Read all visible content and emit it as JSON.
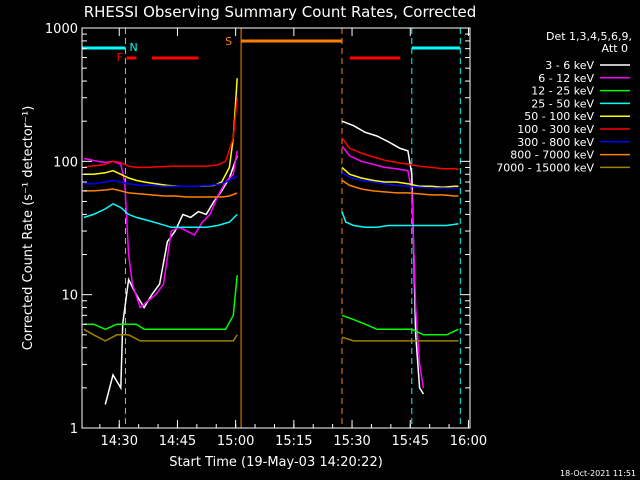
{
  "chart_data": {
    "type": "line",
    "title": "RHESSI Observing Summary Count Rates, Corrected",
    "xlabel": "Start Time (19-May-03 14:20:22)",
    "ylabel": "Corrected Count Rate (s⁻¹ detector⁻¹)",
    "yscale": "log",
    "ylim": [
      1,
      1000
    ],
    "xlim_minutes": [
      0,
      100
    ],
    "x_ticks": [
      {
        "t": 9.6,
        "label": "14:30"
      },
      {
        "t": 24.6,
        "label": "14:45"
      },
      {
        "t": 39.6,
        "label": "15:00"
      },
      {
        "t": 54.6,
        "label": "15:15"
      },
      {
        "t": 69.6,
        "label": "15:30"
      },
      {
        "t": 84.6,
        "label": "15:45"
      },
      {
        "t": 99.6,
        "label": "16:00"
      }
    ],
    "y_ticks": [
      {
        "v": 1,
        "label": "1"
      },
      {
        "v": 10,
        "label": "10"
      },
      {
        "v": 100,
        "label": "100"
      },
      {
        "v": 1000,
        "label": "1000"
      }
    ],
    "legend_header": [
      "Det 1,3,4,5,6,9,",
      "Att 0"
    ],
    "legend_placement": "top-right",
    "footer_date": "18-Oct-2021 11:51",
    "data_gap_minutes": [
      41,
      67
    ],
    "series": [
      {
        "name": "3 - 6 keV",
        "color": "#ffffff",
        "points": [
          [
            6,
            1.5
          ],
          [
            8,
            2.5
          ],
          [
            10,
            2
          ],
          [
            10.5,
            6
          ],
          [
            12,
            13
          ],
          [
            14,
            10
          ],
          [
            16,
            8
          ],
          [
            18,
            10
          ],
          [
            20,
            12
          ],
          [
            22,
            25
          ],
          [
            24,
            30
          ],
          [
            26,
            40
          ],
          [
            28,
            38
          ],
          [
            30,
            42
          ],
          [
            32,
            40
          ],
          [
            34,
            50
          ],
          [
            36,
            60
          ],
          [
            38,
            75
          ],
          [
            40,
            110
          ],
          [
            67,
            200
          ],
          [
            70,
            185
          ],
          [
            73,
            165
          ],
          [
            76,
            155
          ],
          [
            79,
            140
          ],
          [
            82,
            125
          ],
          [
            84,
            120
          ],
          [
            85,
            80
          ],
          [
            86,
            5
          ],
          [
            87,
            2
          ],
          [
            88,
            1.8
          ]
        ]
      },
      {
        "name": "6 - 12 keV",
        "color": "#ff00ff",
        "points": [
          [
            0.5,
            105
          ],
          [
            2,
            103
          ],
          [
            4,
            100
          ],
          [
            6,
            98
          ],
          [
            8,
            100
          ],
          [
            10,
            95
          ],
          [
            11,
            70
          ],
          [
            12,
            20
          ],
          [
            13,
            12
          ],
          [
            15,
            8
          ],
          [
            17,
            9
          ],
          [
            19,
            10
          ],
          [
            21,
            12
          ],
          [
            23,
            30
          ],
          [
            25,
            32
          ],
          [
            27,
            30
          ],
          [
            29,
            28
          ],
          [
            31,
            35
          ],
          [
            33,
            40
          ],
          [
            35,
            55
          ],
          [
            37,
            70
          ],
          [
            39,
            80
          ],
          [
            40,
            120
          ],
          [
            67,
            130
          ],
          [
            69,
            110
          ],
          [
            72,
            100
          ],
          [
            75,
            95
          ],
          [
            78,
            90
          ],
          [
            81,
            88
          ],
          [
            84,
            85
          ],
          [
            85,
            60
          ],
          [
            86,
            8
          ],
          [
            87,
            3
          ],
          [
            88,
            2
          ]
        ]
      },
      {
        "name": "12 - 25 keV",
        "color": "#00ff00",
        "points": [
          [
            0.5,
            6
          ],
          [
            3,
            6
          ],
          [
            6,
            5.5
          ],
          [
            9,
            6
          ],
          [
            12,
            6
          ],
          [
            14,
            6
          ],
          [
            16,
            5.5
          ],
          [
            19,
            5.5
          ],
          [
            22,
            5.5
          ],
          [
            25,
            5.5
          ],
          [
            28,
            5.5
          ],
          [
            31,
            5.5
          ],
          [
            34,
            5.5
          ],
          [
            37,
            5.5
          ],
          [
            39,
            7
          ],
          [
            40,
            14
          ],
          [
            67,
            7
          ],
          [
            70,
            6.5
          ],
          [
            73,
            6
          ],
          [
            76,
            5.5
          ],
          [
            79,
            5.5
          ],
          [
            82,
            5.5
          ],
          [
            85,
            5.5
          ],
          [
            88,
            5
          ],
          [
            91,
            5
          ],
          [
            94,
            5
          ],
          [
            97,
            5.5
          ]
        ]
      },
      {
        "name": "25 - 50 keV",
        "color": "#00ffff",
        "points": [
          [
            0.5,
            38
          ],
          [
            3,
            40
          ],
          [
            6,
            44
          ],
          [
            8,
            48
          ],
          [
            10,
            45
          ],
          [
            12,
            40
          ],
          [
            14,
            38
          ],
          [
            17,
            36
          ],
          [
            20,
            34
          ],
          [
            23,
            32
          ],
          [
            26,
            32
          ],
          [
            29,
            32
          ],
          [
            32,
            32
          ],
          [
            35,
            33
          ],
          [
            38,
            35
          ],
          [
            40,
            40
          ],
          [
            67,
            42
          ],
          [
            68,
            35
          ],
          [
            70,
            33
          ],
          [
            73,
            32
          ],
          [
            76,
            32
          ],
          [
            79,
            33
          ],
          [
            82,
            33
          ],
          [
            85,
            33
          ],
          [
            88,
            33
          ],
          [
            91,
            33
          ],
          [
            94,
            33
          ],
          [
            97,
            34
          ]
        ]
      },
      {
        "name": "50 - 100 keV",
        "color": "#ffff00",
        "points": [
          [
            0.5,
            80
          ],
          [
            3,
            80
          ],
          [
            6,
            82
          ],
          [
            8,
            85
          ],
          [
            10,
            80
          ],
          [
            12,
            75
          ],
          [
            14,
            72
          ],
          [
            16,
            70
          ],
          [
            19,
            68
          ],
          [
            22,
            66
          ],
          [
            25,
            65
          ],
          [
            28,
            65
          ],
          [
            31,
            65
          ],
          [
            34,
            66
          ],
          [
            36,
            70
          ],
          [
            38,
            90
          ],
          [
            39,
            150
          ],
          [
            40,
            420
          ],
          [
            67,
            90
          ],
          [
            69,
            80
          ],
          [
            72,
            75
          ],
          [
            75,
            72
          ],
          [
            78,
            70
          ],
          [
            81,
            70
          ],
          [
            84,
            68
          ],
          [
            87,
            65
          ],
          [
            90,
            65
          ],
          [
            93,
            64
          ],
          [
            96,
            65
          ],
          [
            97,
            65
          ]
        ]
      },
      {
        "name": "100 - 300 keV",
        "color": "#ff0000",
        "points": [
          [
            0.5,
            90
          ],
          [
            2,
            92
          ],
          [
            4,
            93
          ],
          [
            6,
            95
          ],
          [
            8,
            100
          ],
          [
            10,
            98
          ],
          [
            12,
            92
          ],
          [
            14,
            90
          ],
          [
            17,
            90
          ],
          [
            20,
            91
          ],
          [
            23,
            92
          ],
          [
            26,
            92
          ],
          [
            29,
            92
          ],
          [
            32,
            92
          ],
          [
            35,
            94
          ],
          [
            37,
            100
          ],
          [
            39,
            150
          ],
          [
            40,
            300
          ],
          [
            67,
            150
          ],
          [
            69,
            125
          ],
          [
            72,
            115
          ],
          [
            75,
            108
          ],
          [
            78,
            102
          ],
          [
            81,
            98
          ],
          [
            84,
            95
          ],
          [
            87,
            92
          ],
          [
            90,
            90
          ],
          [
            93,
            88
          ],
          [
            96,
            88
          ],
          [
            97,
            87
          ]
        ]
      },
      {
        "name": "300 - 800 keV",
        "color": "#0000ff",
        "points": [
          [
            0.5,
            68
          ],
          [
            3,
            68
          ],
          [
            6,
            70
          ],
          [
            8,
            72
          ],
          [
            10,
            70
          ],
          [
            12,
            68
          ],
          [
            15,
            66
          ],
          [
            18,
            66
          ],
          [
            21,
            65
          ],
          [
            24,
            65
          ],
          [
            27,
            65
          ],
          [
            30,
            65
          ],
          [
            33,
            66
          ],
          [
            36,
            68
          ],
          [
            38,
            72
          ],
          [
            40,
            78
          ],
          [
            67,
            82
          ],
          [
            69,
            76
          ],
          [
            72,
            72
          ],
          [
            75,
            70
          ],
          [
            78,
            68
          ],
          [
            81,
            66
          ],
          [
            84,
            65
          ],
          [
            87,
            64
          ],
          [
            90,
            63
          ],
          [
            93,
            63
          ],
          [
            96,
            63
          ],
          [
            97,
            63
          ]
        ]
      },
      {
        "name": "800 - 7000 keV",
        "color": "#ff8000",
        "points": [
          [
            0.5,
            60
          ],
          [
            3,
            60
          ],
          [
            6,
            61
          ],
          [
            8,
            62
          ],
          [
            10,
            60
          ],
          [
            12,
            58
          ],
          [
            15,
            57
          ],
          [
            18,
            56
          ],
          [
            21,
            55
          ],
          [
            24,
            55
          ],
          [
            27,
            54
          ],
          [
            30,
            54
          ],
          [
            33,
            54
          ],
          [
            36,
            54
          ],
          [
            38,
            55
          ],
          [
            40,
            58
          ],
          [
            67,
            72
          ],
          [
            69,
            66
          ],
          [
            72,
            62
          ],
          [
            75,
            60
          ],
          [
            78,
            59
          ],
          [
            81,
            58
          ],
          [
            84,
            58
          ],
          [
            87,
            57
          ],
          [
            90,
            56
          ],
          [
            93,
            56
          ],
          [
            96,
            55
          ],
          [
            97,
            55
          ]
        ]
      },
      {
        "name": "7000 - 15000 keV",
        "color": "#a08000",
        "points": [
          [
            0.5,
            5.5
          ],
          [
            3,
            5
          ],
          [
            6,
            4.5
          ],
          [
            9,
            5
          ],
          [
            12,
            5
          ],
          [
            15,
            4.5
          ],
          [
            18,
            4.5
          ],
          [
            21,
            4.5
          ],
          [
            24,
            4.5
          ],
          [
            27,
            4.5
          ],
          [
            30,
            4.5
          ],
          [
            33,
            4.5
          ],
          [
            36,
            4.5
          ],
          [
            39,
            4.5
          ],
          [
            40,
            5
          ],
          [
            67,
            4.8
          ],
          [
            70,
            4.5
          ],
          [
            73,
            4.5
          ],
          [
            76,
            4.5
          ],
          [
            79,
            4.5
          ],
          [
            82,
            4.5
          ],
          [
            85,
            4.5
          ],
          [
            88,
            4.5
          ],
          [
            91,
            4.5
          ],
          [
            94,
            4.5
          ],
          [
            97,
            4.5
          ]
        ]
      }
    ],
    "flags": {
      "night_label": "N",
      "flare_label": "F",
      "saa_label": "S",
      "night_color": "#00ffff",
      "flare_color": "#ff0000",
      "saa_color": "#ff8000",
      "night_bars": [
        [
          0,
          11.2
        ],
        [
          85,
          97.5
        ]
      ],
      "flare_bars": [
        [
          11.5,
          14
        ],
        [
          18,
          30
        ],
        [
          69,
          82
        ]
      ],
      "saa_bars": [
        [
          41,
          67
        ]
      ],
      "night_boundaries": [
        11.2,
        85,
        97.5
      ],
      "saa_boundaries": [
        41,
        67
      ]
    }
  }
}
